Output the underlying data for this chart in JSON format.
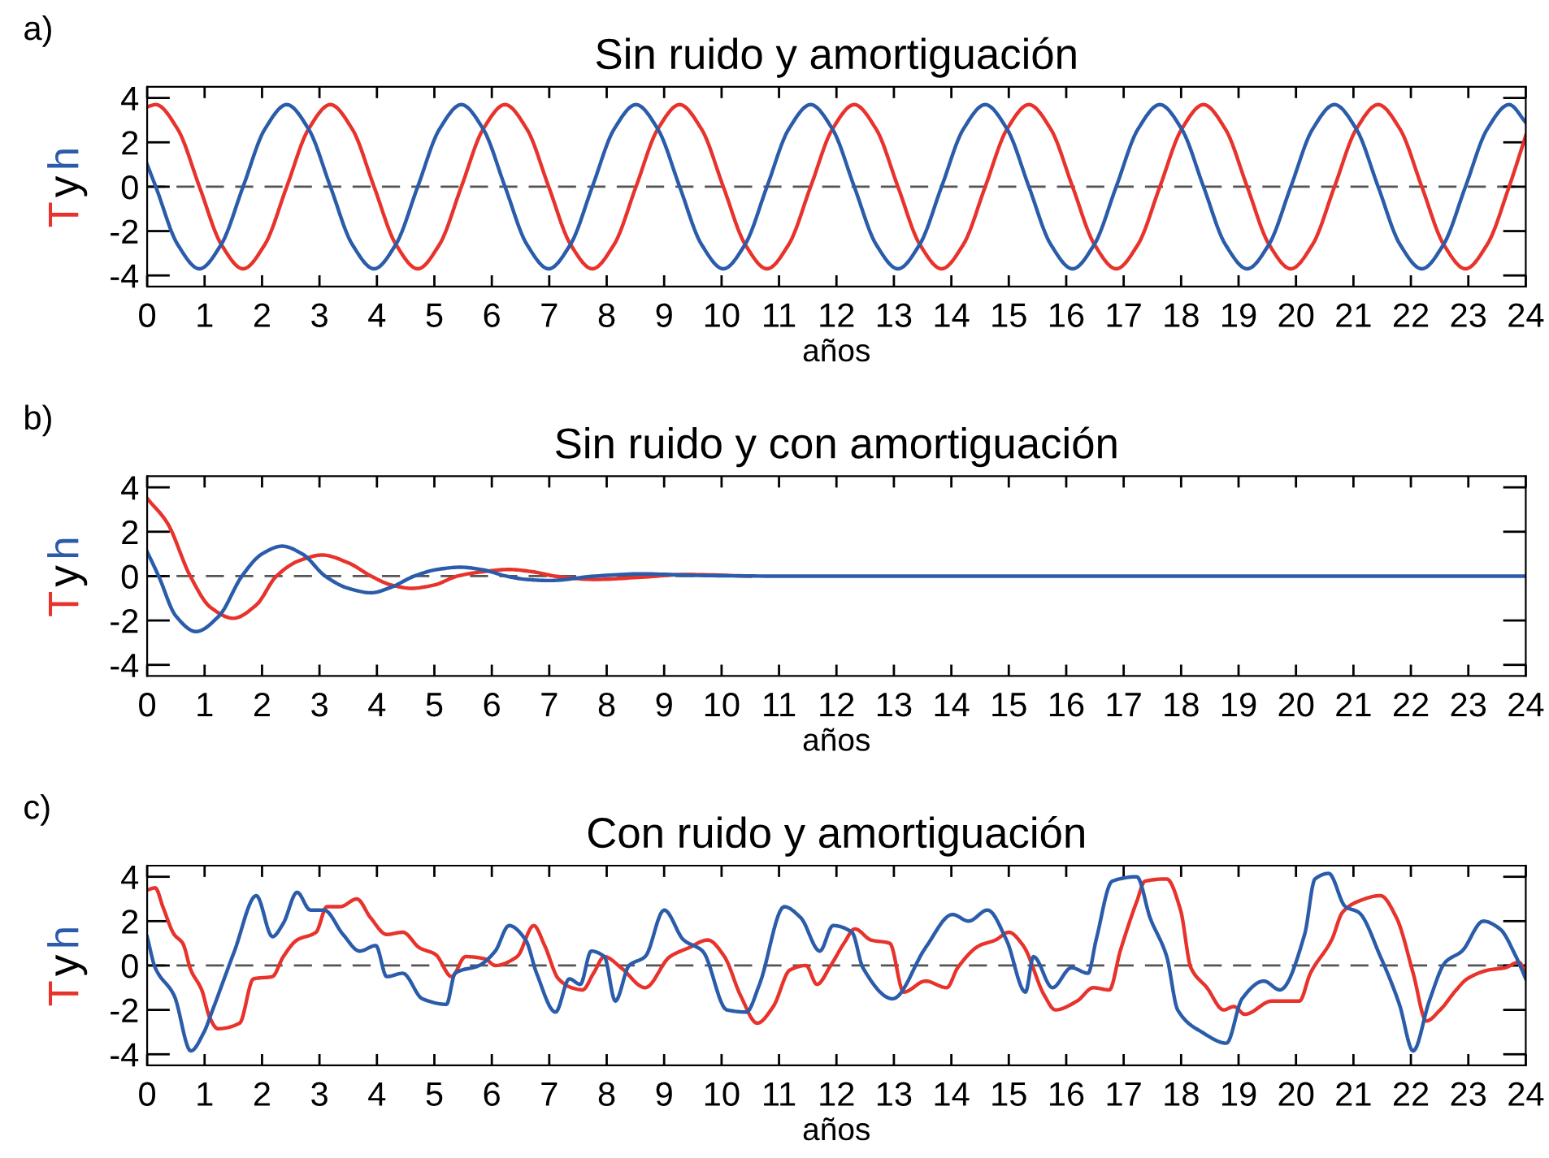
{
  "chart_data": [
    {
      "type": "line",
      "title": "Sin ruido y amortiguación",
      "xlabel": "años",
      "ylabel": "T y h",
      "annotations": [
        "a)"
      ],
      "xlim": [
        0,
        24
      ],
      "ylim": [
        -4.5,
        4.5
      ],
      "xticks": [
        0,
        1,
        2,
        3,
        4,
        5,
        6,
        7,
        8,
        9,
        10,
        11,
        12,
        13,
        14,
        15,
        16,
        17,
        18,
        19,
        20,
        21,
        22,
        23,
        24
      ],
      "yticks": [
        -4,
        -2,
        0,
        2,
        4
      ],
      "grid": false,
      "legend": false,
      "ref_lines": [
        {
          "axis": "y",
          "value": 0,
          "color": "#555555",
          "line_style": "dashed"
        }
      ],
      "series": [
        {
          "color": "#e8322c",
          "x": [
            0,
            0.15,
            0.53,
            0.91,
            1.29,
            1.67,
            2.05,
            2.43,
            2.81,
            3.19,
            3.57,
            3.95,
            4.33,
            4.71,
            5.09,
            5.47,
            5.85,
            6.23,
            6.61,
            6.99,
            7.37,
            7.75,
            8.13,
            8.51,
            8.89,
            9.27,
            9.65,
            10.03,
            10.41,
            10.79,
            11.17,
            11.55,
            11.93,
            12.31,
            12.69,
            13.07,
            13.45,
            13.83,
            14.21,
            14.59,
            14.97,
            15.35,
            15.73,
            16.11,
            16.49,
            16.87,
            17.25,
            17.63,
            18.01,
            18.39,
            18.77,
            19.15,
            19.53,
            19.91,
            20.29,
            20.67,
            21.05,
            21.43,
            21.81,
            22.19,
            22.57,
            22.95,
            23.33,
            23.71,
            24
          ],
          "values": [
            3.6,
            3.7,
            2.6,
            0,
            -2.6,
            -3.7,
            -2.6,
            0,
            2.6,
            3.7,
            2.6,
            0,
            -2.6,
            -3.7,
            -2.6,
            0,
            2.6,
            3.7,
            2.6,
            0,
            -2.6,
            -3.7,
            -2.6,
            0,
            2.6,
            3.7,
            2.6,
            0,
            -2.6,
            -3.7,
            -2.6,
            0,
            2.6,
            3.7,
            2.6,
            0,
            -2.6,
            -3.7,
            -2.6,
            0,
            2.6,
            3.7,
            2.6,
            0,
            -2.6,
            -3.7,
            -2.6,
            0,
            2.6,
            3.7,
            2.6,
            0,
            -2.6,
            -3.7,
            -2.6,
            0,
            2.6,
            3.7,
            2.6,
            0,
            -2.6,
            -3.7,
            -2.6,
            0,
            2.3
          ]
        },
        {
          "color": "#2a5caa",
          "x": [
            0,
            0.15,
            0.53,
            0.91,
            1.29,
            1.67,
            2.05,
            2.43,
            2.81,
            3.19,
            3.57,
            3.95,
            4.33,
            4.71,
            5.09,
            5.47,
            5.85,
            6.23,
            6.61,
            6.99,
            7.37,
            7.75,
            8.13,
            8.51,
            8.89,
            9.27,
            9.65,
            10.03,
            10.41,
            10.79,
            11.17,
            11.55,
            11.93,
            12.31,
            12.69,
            13.07,
            13.45,
            13.83,
            14.21,
            14.59,
            14.97,
            15.35,
            15.73,
            16.11,
            16.49,
            16.87,
            17.25,
            17.63,
            18.01,
            18.39,
            18.77,
            19.15,
            19.53,
            19.91,
            20.29,
            20.67,
            21.05,
            21.43,
            21.81,
            22.19,
            22.57,
            22.95,
            23.33,
            23.71,
            24
          ],
          "values": [
            1.0,
            0,
            -2.6,
            -3.7,
            -2.6,
            0,
            2.6,
            3.7,
            2.6,
            0,
            -2.6,
            -3.7,
            -2.6,
            0,
            2.6,
            3.7,
            2.6,
            0,
            -2.6,
            -3.7,
            -2.6,
            0,
            2.6,
            3.7,
            2.6,
            0,
            -2.6,
            -3.7,
            -2.6,
            0,
            2.6,
            3.7,
            2.6,
            0,
            -2.6,
            -3.7,
            -2.6,
            0,
            2.6,
            3.7,
            2.6,
            0,
            -2.6,
            -3.7,
            -2.6,
            0,
            2.6,
            3.7,
            2.6,
            0,
            -2.6,
            -3.7,
            -2.6,
            0,
            2.6,
            3.7,
            2.6,
            0,
            -2.6,
            -3.7,
            -2.6,
            0,
            2.6,
            3.7,
            2.9
          ]
        }
      ]
    },
    {
      "type": "line",
      "title": "Sin ruido y con amortiguación",
      "xlabel": "años",
      "ylabel": "T y h",
      "annotations": [
        "b)"
      ],
      "xlim": [
        0,
        24
      ],
      "ylim": [
        -4.5,
        4.5
      ],
      "xticks": [
        0,
        1,
        2,
        3,
        4,
        5,
        6,
        7,
        8,
        9,
        10,
        11,
        12,
        13,
        14,
        15,
        16,
        17,
        18,
        19,
        20,
        21,
        22,
        23,
        24
      ],
      "yticks": [
        -4,
        -2,
        0,
        2,
        4
      ],
      "grid": false,
      "legend": false,
      "ref_lines": [
        {
          "axis": "y",
          "value": 0,
          "color": "#555555",
          "line_style": "dashed"
        }
      ],
      "series": [
        {
          "color": "#e8322c",
          "x": [
            0,
            0.35,
            0.75,
            1.1,
            1.5,
            1.9,
            2.25,
            2.65,
            3.05,
            3.5,
            3.9,
            4.25,
            4.6,
            5.0,
            5.4,
            5.85,
            6.3,
            6.7,
            7.1,
            7.8,
            8.6,
            9.4,
            10.5
          ],
          "values": [
            3.5,
            2.4,
            0,
            -1.4,
            -1.9,
            -1.3,
            0,
            0.7,
            0.95,
            0.6,
            0,
            -0.4,
            -0.55,
            -0.4,
            0,
            0.2,
            0.3,
            0.2,
            0,
            -0.15,
            -0.05,
            0.07,
            0
          ]
        },
        {
          "color": "#2a5caa",
          "x": [
            0,
            0.2,
            0.5,
            0.85,
            1.25,
            1.65,
            2.0,
            2.35,
            2.7,
            3.1,
            3.5,
            3.9,
            4.25,
            4.65,
            5.05,
            5.45,
            5.85,
            6.25,
            6.6,
            7.0,
            7.8,
            8.6,
            9.6,
            11,
            14,
            18,
            21,
            24
          ],
          "values": [
            1.1,
            0,
            -1.8,
            -2.5,
            -1.8,
            0,
            1.0,
            1.35,
            1.0,
            0,
            -0.55,
            -0.75,
            -0.5,
            0,
            0.3,
            0.4,
            0.28,
            0,
            -0.15,
            -0.2,
            0,
            0.1,
            0.03,
            0,
            0,
            0,
            0,
            0
          ]
        }
      ]
    },
    {
      "type": "line",
      "title": "Con ruido y amortiguación",
      "xlabel": "años",
      "ylabel": "T y h",
      "annotations": [
        "c)"
      ],
      "xlim": [
        0,
        24
      ],
      "ylim": [
        -4.5,
        4.5
      ],
      "xticks": [
        0,
        1,
        2,
        3,
        4,
        5,
        6,
        7,
        8,
        9,
        10,
        11,
        12,
        13,
        14,
        15,
        16,
        17,
        18,
        19,
        20,
        21,
        22,
        23,
        24
      ],
      "yticks": [
        -4,
        -2,
        0,
        2,
        4
      ],
      "grid": false,
      "legend": false,
      "ref_lines": [
        {
          "axis": "y",
          "value": 0,
          "color": "#555555",
          "line_style": "dashed"
        }
      ],
      "series": [
        {
          "color": "#e8322c",
          "x": [
            0,
            0.14,
            0.28,
            0.47,
            0.62,
            0.76,
            0.95,
            1.09,
            1.23,
            1.61,
            1.85,
            2.18,
            2.37,
            2.61,
            2.94,
            3.13,
            3.36,
            3.65,
            3.89,
            4.17,
            4.45,
            4.74,
            5.02,
            5.3,
            5.54,
            5.88,
            6.06,
            6.44,
            6.73,
            6.92,
            7.16,
            7.39,
            7.58,
            7.77,
            7.96,
            8.25,
            8.67,
            9.1,
            9.43,
            9.76,
            10.05,
            10.33,
            10.62,
            10.9,
            11.19,
            11.47,
            11.66,
            11.9,
            12.13,
            12.32,
            12.6,
            12.93,
            13.17,
            13.55,
            13.92,
            14.11,
            14.49,
            14.77,
            15.0,
            15.25,
            15.62,
            15.81,
            16.19,
            16.47,
            16.75,
            16.94,
            17.23,
            17.37,
            17.75,
            17.99,
            18.17,
            18.45,
            18.74,
            18.92,
            19.11,
            19.58,
            20.06,
            20.25,
            20.62,
            20.81,
            21.09,
            21.47,
            21.75,
            22.04,
            22.27,
            22.51,
            22.79,
            22.98,
            23.36,
            23.64,
            23.88,
            24
          ],
          "values": [
            3.4,
            3.5,
            2.6,
            1.4,
            1.0,
            -0.2,
            -1.1,
            -2.35,
            -2.85,
            -2.6,
            -0.6,
            -0.5,
            0.4,
            1.15,
            1.5,
            2.65,
            2.65,
            3.0,
            2.15,
            1.4,
            1.5,
            0.8,
            0.5,
            -0.5,
            0.4,
            0.3,
            0.0,
            0.4,
            1.8,
            0.9,
            -0.6,
            -1.0,
            -1.1,
            -0.35,
            0.4,
            -0.1,
            -1.0,
            0.4,
            0.8,
            1.15,
            0.4,
            -1.35,
            -2.6,
            -1.85,
            -0.2,
            0.0,
            -0.85,
            0.0,
            1.0,
            1.65,
            1.15,
            1.0,
            -1.2,
            -0.7,
            -1.0,
            -0.1,
            0.9,
            1.15,
            1.5,
            0.9,
            -1.35,
            -2.0,
            -1.6,
            -1.0,
            -1.1,
            0.65,
            2.9,
            3.8,
            3.9,
            2.5,
            -0.1,
            -1.0,
            -2.0,
            -1.85,
            -2.2,
            -1.6,
            -1.6,
            -0.35,
            1.15,
            2.4,
            2.9,
            3.15,
            2.15,
            -0.35,
            -2.5,
            -2.0,
            -1.1,
            -0.6,
            -0.2,
            -0.1,
            0.15,
            -0.35
          ]
        },
        {
          "color": "#2a5caa",
          "x": [
            0,
            0.14,
            0.47,
            0.76,
            0.99,
            1.14,
            1.52,
            1.9,
            2.18,
            2.37,
            2.61,
            2.84,
            3.08,
            3.41,
            3.7,
            3.98,
            4.17,
            4.45,
            4.79,
            5.21,
            5.36,
            5.78,
            6.06,
            6.3,
            6.59,
            6.78,
            7.11,
            7.35,
            7.54,
            7.73,
            7.96,
            8.15,
            8.39,
            8.67,
            9.0,
            9.34,
            9.67,
            10.09,
            10.43,
            10.66,
            11.09,
            11.38,
            11.71,
            11.94,
            12.27,
            12.46,
            12.98,
            13.55,
            14.02,
            14.3,
            14.63,
            14.96,
            15.29,
            15.43,
            15.76,
            16.09,
            16.38,
            16.52,
            16.8,
            17.23,
            17.46,
            17.75,
            17.94,
            18.36,
            18.79,
            19.06,
            19.44,
            19.72,
            20.15,
            20.33,
            20.57,
            20.86,
            21.09,
            21.47,
            21.8,
            22.04,
            22.32,
            22.6,
            22.89,
            23.26,
            23.55,
            23.83,
            24
          ],
          "values": [
            1.3,
            -0.1,
            -1.35,
            -3.85,
            -3.0,
            -2.0,
            0.65,
            3.15,
            1.3,
            1.9,
            3.3,
            2.5,
            2.5,
            1.4,
            0.65,
            0.9,
            -0.5,
            -0.35,
            -1.5,
            -1.75,
            -0.35,
            0.0,
            0.65,
            1.8,
            1.15,
            -0.35,
            -2.1,
            -0.6,
            -0.85,
            0.65,
            0.4,
            -1.6,
            0.0,
            0.4,
            2.5,
            1.15,
            0.65,
            -2.0,
            -2.1,
            -0.85,
            2.65,
            2.15,
            0.65,
            1.8,
            1.5,
            -0.1,
            -1.5,
            0.8,
            2.3,
            2.0,
            2.5,
            1.15,
            -1.2,
            0.4,
            -1.0,
            -0.1,
            -0.35,
            1.15,
            3.8,
            4.0,
            2.15,
            0.4,
            -2.0,
            -3.0,
            -3.5,
            -1.5,
            -0.7,
            -1.1,
            1.4,
            3.9,
            4.15,
            2.65,
            2.4,
            0.4,
            -1.75,
            -3.85,
            -1.6,
            0.15,
            0.65,
            2.0,
            1.65,
            0.4,
            -0.6
          ]
        }
      ]
    }
  ]
}
